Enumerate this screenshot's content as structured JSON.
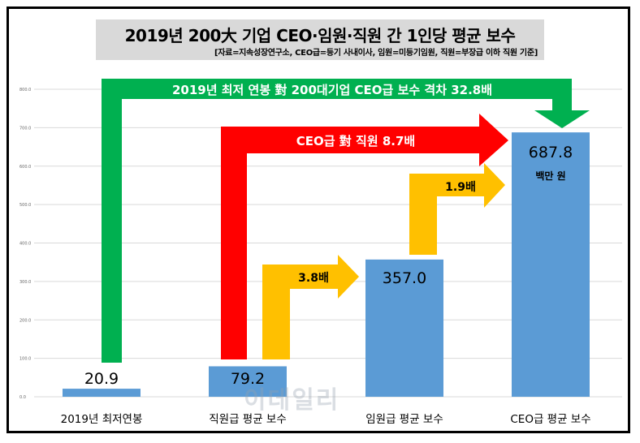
{
  "title": "2019년 200大 기업 CEO·임원·직원 간 1인당 평균 보수",
  "subtitle": "[자료=지속성장연구소, CEO급=등기 사내이사, 임원=미등기임원, 직원=부장급 이하 직원 기준]",
  "watermark": "이데일리",
  "colors": {
    "bar": "#5b9bd5",
    "green_arrow": "#00b050",
    "red_arrow": "#ff0000",
    "yellow_arrow": "#ffc000"
  },
  "chart_data": {
    "type": "bar",
    "categories": [
      "2019년 최저연봉",
      "직원급 평균 보수",
      "임원급 평균 보수",
      "CEO급 평균 보수"
    ],
    "values": [
      20.9,
      79.2,
      357.0,
      687.8
    ],
    "value_labels": [
      "20.9",
      "79.2",
      "357.0",
      "687.8"
    ],
    "unit_label": "백만 원",
    "ylim": [
      0,
      800
    ],
    "yticks": [
      "0.0",
      "100.0",
      "200.0",
      "300.0",
      "400.0",
      "500.0",
      "600.0",
      "700.0",
      "800.0"
    ],
    "grid": true,
    "annotations": [
      {
        "text": "2019년 최저 연봉 對  200대기업 CEO급 보수 격차 32.8배",
        "color": "green"
      },
      {
        "text": "CEO급 對 직원  8.7배",
        "color": "red"
      },
      {
        "text": "3.8배",
        "color": "yellow"
      },
      {
        "text": "1.9배",
        "color": "yellow"
      }
    ]
  }
}
